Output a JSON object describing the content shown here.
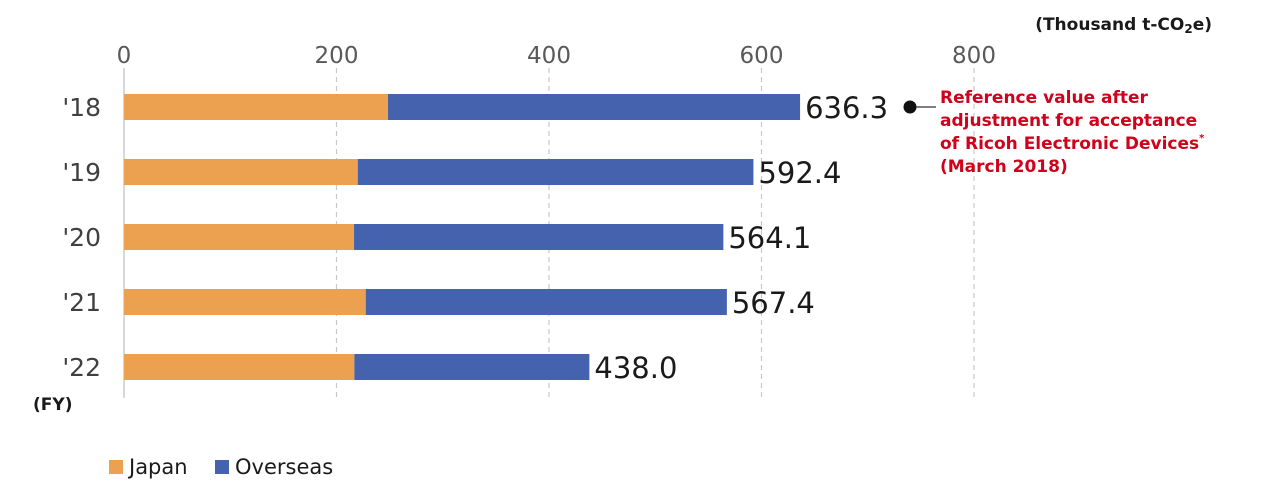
{
  "chart_data": {
    "type": "bar",
    "orientation": "horizontal",
    "stacked": true,
    "categories": [
      "'18",
      "'19",
      "'20",
      "'21",
      "'22"
    ],
    "series": [
      {
        "name": "Japan",
        "color": "#eba14f",
        "values": [
          248.5,
          220.0,
          216.5,
          227.5,
          216.8
        ]
      },
      {
        "name": "Overseas",
        "color": "#4462ad",
        "values": [
          387.8,
          372.4,
          347.6,
          339.9,
          221.2
        ]
      }
    ],
    "totals": [
      "636.3",
      "592.4",
      "564.1",
      "567.4",
      "438.0"
    ],
    "xticks": [
      "0",
      "200",
      "400",
      "600",
      "800"
    ],
    "xlim": [
      0,
      800
    ],
    "grid": "vertical dashed",
    "legend_position": "bottom-left",
    "unit_label_main": "(Thousand t-CO",
    "unit_label_sub": "2",
    "unit_label_end": "e)",
    "category_axis_label": "(FY)",
    "annotation": {
      "lines": [
        "Reference value after",
        "adjustment for acceptance",
        "of Ricoh Electronic Devices",
        "(March 2018)"
      ],
      "footnote_mark": "*",
      "color": "#d0021b",
      "target_category": "'18"
    }
  }
}
